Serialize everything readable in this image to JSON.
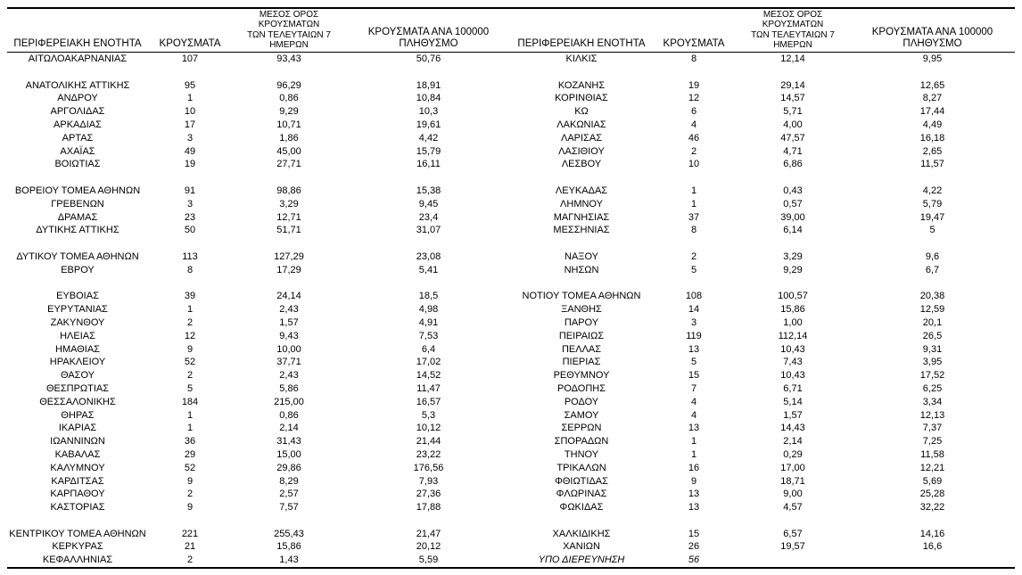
{
  "colors": {
    "text": "#000000",
    "rule_lines": "#000000",
    "background": "#ffffff"
  },
  "table": {
    "columns": [
      {
        "id": "region-left",
        "label": "ΠΕΡΙΦΕΡΕΙΑΚΗ ΕΝΟΤΗΤΑ"
      },
      {
        "id": "cases-left",
        "label": "ΚΡΟΥΣΜΑΤΑ"
      },
      {
        "id": "avg7-left",
        "label": "ΜΕΣΟΣ ΟΡΟΣ ΚΡΟΥΣΜΑΤΩΝ\nΤΩΝ ΤΕΛΕΥΤΑΙΩΝ 7 ΗΜΕΡΩΝ"
      },
      {
        "id": "per100k-left",
        "label": "ΚΡΟΥΣΜΑΤΑ ΑΝΑ 100000\nΠΛΗΘΥΣΜΟ"
      },
      {
        "id": "region-right",
        "label": "ΠΕΡΙΦΕΡΕΙΑΚΗ ΕΝΟΤΗΤΑ"
      },
      {
        "id": "cases-right",
        "label": "ΚΡΟΥΣΜΑΤΑ"
      },
      {
        "id": "avg7-right",
        "label": "ΜΕΣΟΣ ΟΡΟΣ ΚΡΟΥΣΜΑΤΩΝ\nΤΩΝ ΤΕΛΕΥΤΑΙΩΝ 7 ΗΜΕΡΩΝ"
      },
      {
        "id": "per100k-right",
        "label": "ΚΡΟΥΣΜΑΤΑ ΑΝΑ 100000\nΠΛΗΘΥΣΜΟ"
      }
    ],
    "rows": [
      [
        "ΑΙΤΩΛΟΑΚΑΡΝΑΝΙΑΣ",
        "107",
        "93,43",
        "50,76",
        "ΚΙΛΚΙΣ",
        "8",
        "12,14",
        "9,95"
      ],
      [
        "",
        "",
        "",
        "",
        "",
        "",
        "",
        ""
      ],
      [
        "ΑΝΑΤΟΛΙΚΗΣ ΑΤΤΙΚΗΣ",
        "95",
        "96,29",
        "18,91",
        "ΚΟΖΑΝΗΣ",
        "19",
        "29,14",
        "12,65"
      ],
      [
        "ΑΝΔΡΟΥ",
        "1",
        "0,86",
        "10,84",
        "ΚΟΡΙΝΘΙΑΣ",
        "12",
        "14,57",
        "8,27"
      ],
      [
        "ΑΡΓΟΛΙΔΑΣ",
        "10",
        "9,29",
        "10,3",
        "ΚΩ",
        "6",
        "5,71",
        "17,44"
      ],
      [
        "ΑΡΚΑΔΙΑΣ",
        "17",
        "10,71",
        "19,61",
        "ΛΑΚΩΝΙΑΣ",
        "4",
        "4,00",
        "4,49"
      ],
      [
        "ΑΡΤΑΣ",
        "3",
        "1,86",
        "4,42",
        "ΛΑΡΙΣΑΣ",
        "46",
        "47,57",
        "16,18"
      ],
      [
        "ΑΧΑΪΑΣ",
        "49",
        "45,00",
        "15,79",
        "ΛΑΣΙΘΙΟΥ",
        "2",
        "4,71",
        "2,65"
      ],
      [
        "ΒΟΙΩΤΙΑΣ",
        "19",
        "27,71",
        "16,11",
        "ΛΕΣΒΟΥ",
        "10",
        "6,86",
        "11,57"
      ],
      [
        "",
        "",
        "",
        "",
        "",
        "",
        "",
        ""
      ],
      [
        "ΒΟΡΕΙΟΥ ΤΟΜΕΑ ΑΘΗΝΩΝ",
        "91",
        "98,86",
        "15,38",
        "ΛΕΥΚΑΔΑΣ",
        "1",
        "0,43",
        "4,22"
      ],
      [
        "ΓΡΕΒΕΝΩΝ",
        "3",
        "3,29",
        "9,45",
        "ΛΗΜΝΟΥ",
        "1",
        "0,57",
        "5,79"
      ],
      [
        "ΔΡΑΜΑΣ",
        "23",
        "12,71",
        "23,4",
        "ΜΑΓΝΗΣΙΑΣ",
        "37",
        "39,00",
        "19,47"
      ],
      [
        "ΔΥΤΙΚΗΣ ΑΤΤΙΚΗΣ",
        "50",
        "51,71",
        "31,07",
        "ΜΕΣΣΗΝΙΑΣ",
        "8",
        "6,14",
        "5"
      ],
      [
        "",
        "",
        "",
        "",
        "",
        "",
        "",
        ""
      ],
      [
        "ΔΥΤΙΚΟΥ ΤΟΜΕΑ ΑΘΗΝΩΝ",
        "113",
        "127,29",
        "23,08",
        "ΝΑΞΟΥ",
        "2",
        "3,29",
        "9,6"
      ],
      [
        "ΕΒΡΟΥ",
        "8",
        "17,29",
        "5,41",
        "ΝΗΣΩΝ",
        "5",
        "9,29",
        "6,7"
      ],
      [
        "",
        "",
        "",
        "",
        "",
        "",
        "",
        ""
      ],
      [
        "ΕΥΒΟΙΑΣ",
        "39",
        "24,14",
        "18,5",
        "ΝΟΤΙΟΥ ΤΟΜΕΑ ΑΘΗΝΩΝ",
        "108",
        "100,57",
        "20,38"
      ],
      [
        "ΕΥΡΥΤΑΝΙΑΣ",
        "1",
        "2,43",
        "4,98",
        "ΞΑΝΘΗΣ",
        "14",
        "15,86",
        "12,59"
      ],
      [
        "ΖΑΚΥΝΘΟΥ",
        "2",
        "1,57",
        "4,91",
        "ΠΑΡΟΥ",
        "3",
        "1,00",
        "20,1"
      ],
      [
        "ΗΛΕΙΑΣ",
        "12",
        "9,43",
        "7,53",
        "ΠΕΙΡΑΙΩΣ",
        "119",
        "112,14",
        "26,5"
      ],
      [
        "ΗΜΑΘΙΑΣ",
        "9",
        "10,00",
        "6,4",
        "ΠΕΛΛΑΣ",
        "13",
        "10,43",
        "9,31"
      ],
      [
        "ΗΡΑΚΛΕΙΟΥ",
        "52",
        "37,71",
        "17,02",
        "ΠΙΕΡΙΑΣ",
        "5",
        "7,43",
        "3,95"
      ],
      [
        "ΘΑΣΟΥ",
        "2",
        "2,43",
        "14,52",
        "ΡΕΘΥΜΝΟΥ",
        "15",
        "10,43",
        "17,52"
      ],
      [
        "ΘΕΣΠΡΩΤΙΑΣ",
        "5",
        "5,86",
        "11,47",
        "ΡΟΔΟΠΗΣ",
        "7",
        "6,71",
        "6,25"
      ],
      [
        "ΘΕΣΣΑΛΟΝΙΚΗΣ",
        "184",
        "215,00",
        "16,57",
        "ΡΟΔΟΥ",
        "4",
        "5,14",
        "3,34"
      ],
      [
        "ΘΗΡΑΣ",
        "1",
        "0,86",
        "5,3",
        "ΣΑΜΟΥ",
        "4",
        "1,57",
        "12,13"
      ],
      [
        "ΙΚΑΡΙΑΣ",
        "1",
        "2,14",
        "10,12",
        "ΣΕΡΡΩΝ",
        "13",
        "14,43",
        "7,37"
      ],
      [
        "ΙΩΑΝΝΙΝΩΝ",
        "36",
        "31,43",
        "21,44",
        "ΣΠΟΡΑΔΩΝ",
        "1",
        "2,14",
        "7,25"
      ],
      [
        "ΚΑΒΑΛΑΣ",
        "29",
        "15,00",
        "23,22",
        "ΤΗΝΟΥ",
        "1",
        "0,29",
        "11,58"
      ],
      [
        "ΚΑΛΥΜΝΟΥ",
        "52",
        "29,86",
        "176,56",
        "ΤΡΙΚΑΛΩΝ",
        "16",
        "17,00",
        "12,21"
      ],
      [
        "ΚΑΡΔΙΤΣΑΣ",
        "9",
        "8,29",
        "7,93",
        "ΦΘΙΩΤΙΔΑΣ",
        "9",
        "18,71",
        "5,69"
      ],
      [
        "ΚΑΡΠΑΘΟΥ",
        "2",
        "2,57",
        "27,36",
        "ΦΛΩΡΙΝΑΣ",
        "13",
        "9,00",
        "25,28"
      ],
      [
        "ΚΑΣΤΟΡΙΑΣ",
        "9",
        "7,57",
        "17,88",
        "ΦΩΚΙΔΑΣ",
        "13",
        "4,57",
        "32,22"
      ],
      [
        "",
        "",
        "",
        "",
        "",
        "",
        "",
        ""
      ],
      [
        "ΚΕΝΤΡΙΚΟΥ ΤΟΜΕΑ ΑΘΗΝΩΝ",
        "221",
        "255,43",
        "21,47",
        "ΧΑΛΚΙΔΙΚΗΣ",
        "15",
        "6,57",
        "14,16"
      ],
      [
        "ΚΕΡΚΥΡΑΣ",
        "21",
        "15,86",
        "20,12",
        "ΧΑΝΙΩΝ",
        "26",
        "19,57",
        "16,6"
      ],
      [
        "ΚΕΦΑΛΛΗΝΙΑΣ",
        "2",
        "1,43",
        "5,59",
        "ΥΠΟ ΔΙΕΡΕΥΝΗΣΗ",
        "56",
        "",
        ""
      ]
    ],
    "italic_row_index": 38,
    "italic_col_start": 4
  }
}
